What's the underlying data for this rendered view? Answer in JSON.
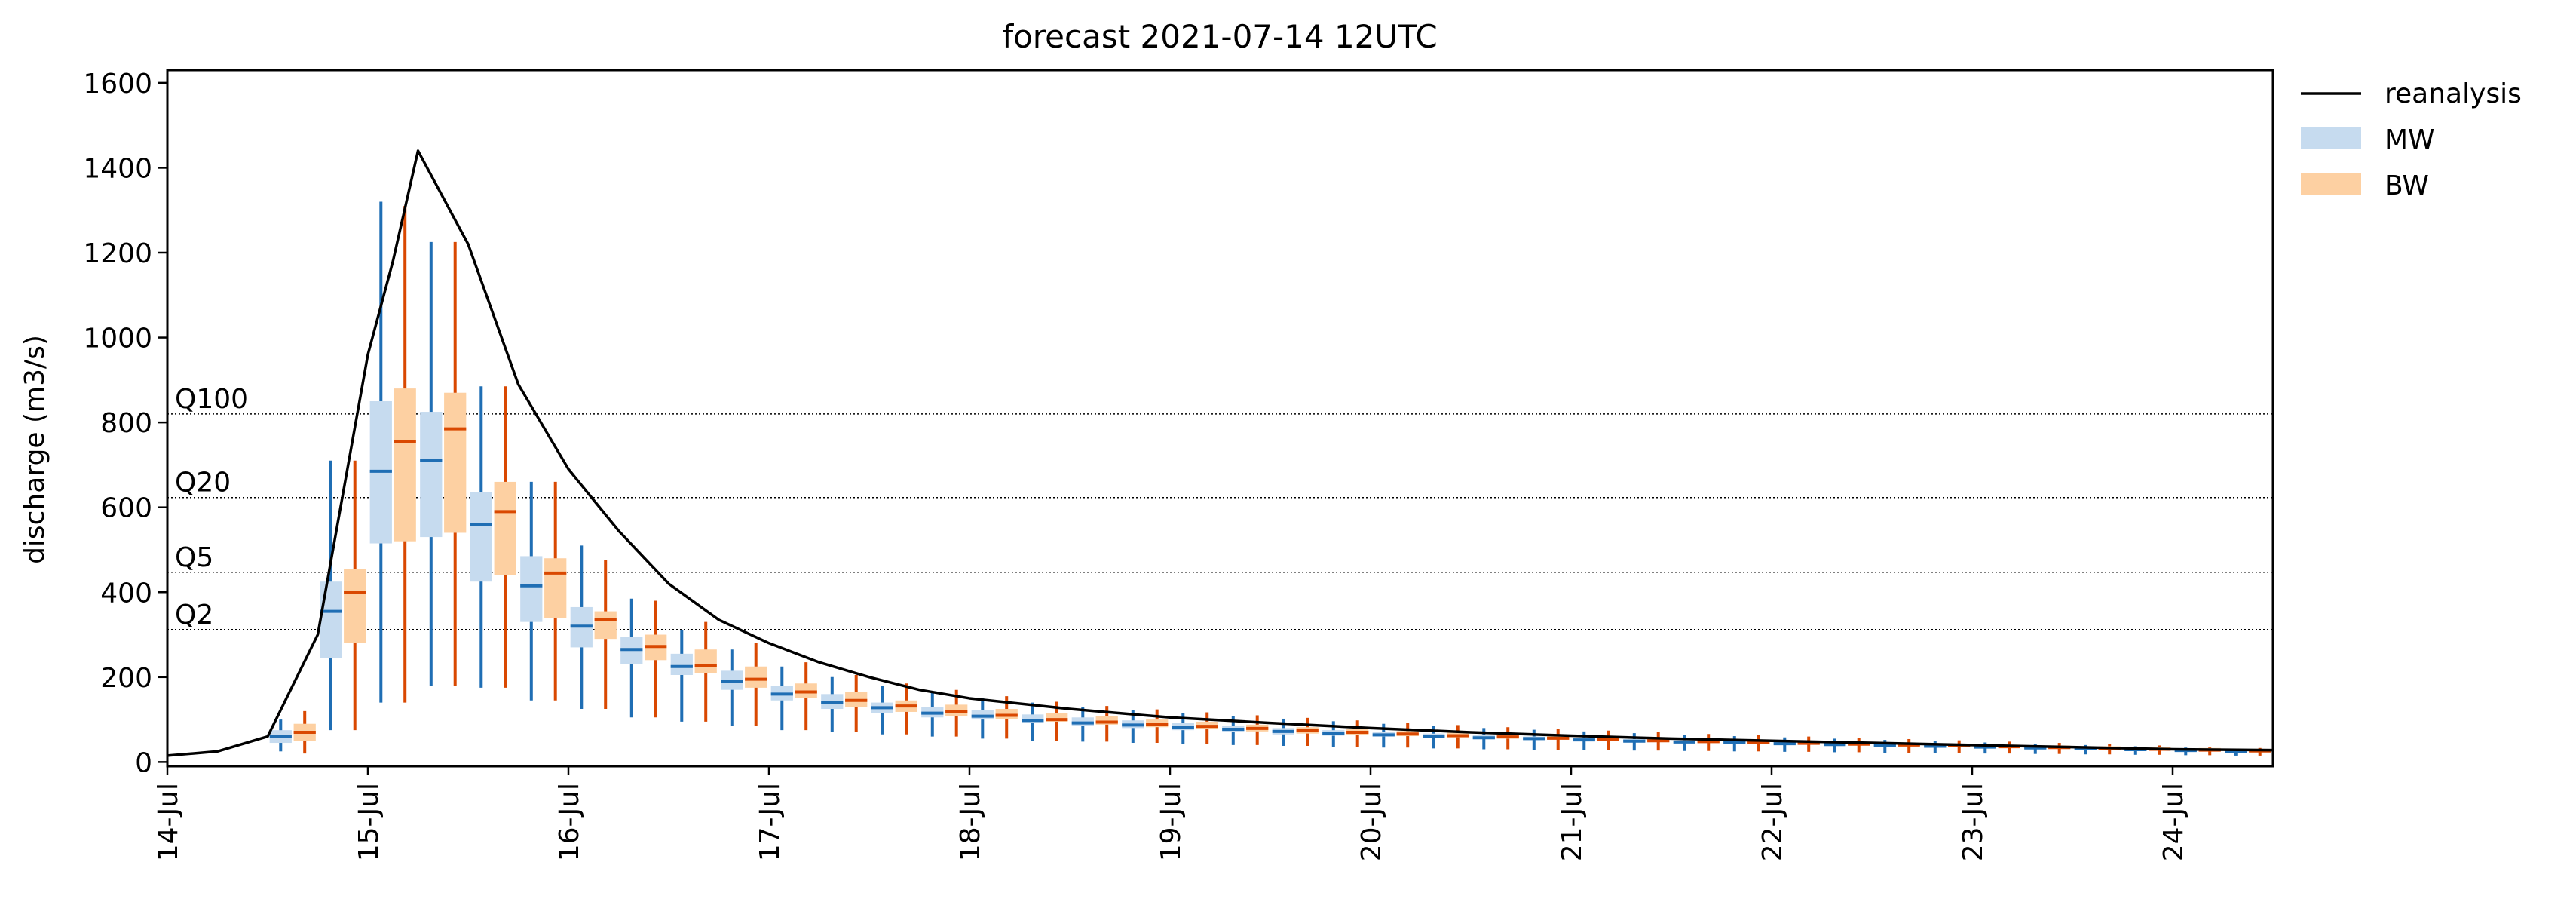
{
  "chart_data": {
    "type": "boxplot-with-line",
    "title": "forecast 2021-07-14 12UTC",
    "xlabel": "",
    "ylabel": "discharge (m3/s)",
    "x_tick_labels": [
      "14-Jul",
      "15-Jul",
      "16-Jul",
      "17-Jul",
      "18-Jul",
      "19-Jul",
      "20-Jul",
      "21-Jul",
      "22-Jul",
      "23-Jul",
      "24-Jul"
    ],
    "xlim_days": [
      0,
      10.5
    ],
    "ylim": [
      -10,
      1630
    ],
    "y_ticks": [
      0,
      200,
      400,
      600,
      800,
      1000,
      1200,
      1400,
      1600
    ],
    "grid": false,
    "legend_position": "outside-right-top",
    "thresholds": [
      {
        "label": "Q100",
        "value": 820
      },
      {
        "label": "Q20",
        "value": 623
      },
      {
        "label": "Q5",
        "value": 447
      },
      {
        "label": "Q2",
        "value": 312
      }
    ],
    "series": [
      {
        "name": "reanalysis",
        "kind": "line",
        "color": "#000000"
      },
      {
        "name": "MW",
        "kind": "box",
        "box_color": "#c6dbef",
        "line_color": "#1f6eb4"
      },
      {
        "name": "BW",
        "kind": "box",
        "box_color": "#fdd0a2",
        "line_color": "#d94801"
      }
    ],
    "reanalysis": {
      "x": [
        0,
        0.25,
        0.5,
        0.75,
        1.0,
        1.125,
        1.25,
        1.5,
        1.75,
        2.0,
        2.25,
        2.5,
        2.75,
        3.0,
        3.25,
        3.5,
        3.75,
        4.0,
        4.5,
        5.0,
        5.5,
        6.0,
        6.5,
        7.0,
        7.5,
        8.0,
        8.5,
        9.0,
        9.5,
        10.0,
        10.5
      ],
      "y": [
        15,
        25,
        60,
        300,
        960,
        1180,
        1440,
        1220,
        890,
        690,
        545,
        420,
        335,
        280,
        235,
        200,
        170,
        150,
        125,
        105,
        92,
        80,
        70,
        62,
        55,
        50,
        45,
        40,
        35,
        30,
        28
      ]
    },
    "forecast": {
      "x": [
        0.625,
        0.875,
        1.125,
        1.375,
        1.625,
        1.875,
        2.125,
        2.375,
        2.625,
        2.875,
        3.125,
        3.375,
        3.625,
        3.875,
        4.125,
        4.375,
        4.625,
        4.875,
        5.125,
        5.375,
        5.625,
        5.875,
        6.125,
        6.375,
        6.625,
        6.875,
        7.125,
        7.375,
        7.625,
        7.875,
        8.125,
        8.375,
        8.625,
        8.875,
        9.125,
        9.375,
        9.625,
        9.875,
        10.125,
        10.375
      ],
      "MW": {
        "whislo": [
          25,
          75,
          140,
          180,
          175,
          145,
          125,
          105,
          95,
          85,
          75,
          70,
          65,
          60,
          55,
          50,
          48,
          45,
          43,
          40,
          38,
          36,
          34,
          32,
          30,
          29,
          28,
          27,
          26,
          25,
          24,
          23,
          22,
          21,
          20,
          19,
          18,
          17,
          16,
          15
        ],
        "q1": [
          45,
          245,
          515,
          530,
          425,
          330,
          270,
          230,
          205,
          170,
          145,
          125,
          115,
          105,
          100,
          92,
          85,
          80,
          75,
          70,
          65,
          62,
          60,
          57,
          54,
          52,
          50,
          47,
          45,
          43,
          41,
          39,
          37,
          35,
          33,
          31,
          29,
          27,
          25,
          23
        ],
        "med": [
          60,
          355,
          685,
          710,
          560,
          415,
          320,
          265,
          225,
          190,
          160,
          140,
          128,
          115,
          108,
          98,
          92,
          87,
          82,
          77,
          72,
          68,
          64,
          60,
          57,
          55,
          52,
          49,
          47,
          45,
          43,
          41,
          39,
          37,
          35,
          33,
          31,
          29,
          27,
          25
        ],
        "q3": [
          75,
          425,
          850,
          825,
          635,
          485,
          365,
          295,
          255,
          215,
          180,
          160,
          140,
          130,
          122,
          112,
          105,
          98,
          92,
          86,
          80,
          75,
          71,
          67,
          63,
          60,
          57,
          54,
          51,
          49,
          47,
          45,
          43,
          41,
          39,
          37,
          35,
          33,
          31,
          29
        ],
        "whishi": [
          100,
          710,
          1320,
          1225,
          885,
          660,
          510,
          385,
          310,
          265,
          225,
          200,
          180,
          165,
          150,
          140,
          130,
          122,
          115,
          108,
          102,
          96,
          90,
          85,
          80,
          76,
          72,
          68,
          64,
          61,
          58,
          55,
          52,
          49,
          46,
          43,
          40,
          37,
          34,
          31
        ]
      },
      "BW": {
        "whislo": [
          20,
          75,
          140,
          180,
          175,
          145,
          125,
          105,
          95,
          85,
          75,
          70,
          65,
          60,
          55,
          50,
          48,
          45,
          43,
          40,
          38,
          36,
          34,
          32,
          30,
          29,
          28,
          27,
          26,
          25,
          24,
          23,
          22,
          21,
          20,
          19,
          18,
          17,
          16,
          15
        ],
        "q1": [
          50,
          280,
          520,
          540,
          440,
          340,
          290,
          240,
          210,
          175,
          150,
          130,
          118,
          108,
          102,
          95,
          88,
          82,
          77,
          72,
          67,
          63,
          61,
          58,
          55,
          53,
          51,
          48,
          46,
          44,
          42,
          40,
          38,
          36,
          34,
          32,
          30,
          28,
          26,
          24
        ],
        "med": [
          70,
          400,
          755,
          785,
          590,
          445,
          335,
          272,
          228,
          195,
          165,
          145,
          132,
          118,
          110,
          100,
          94,
          89,
          84,
          79,
          74,
          70,
          66,
          62,
          59,
          56,
          53,
          50,
          48,
          46,
          44,
          42,
          40,
          38,
          36,
          34,
          32,
          30,
          28,
          26
        ],
        "q3": [
          90,
          455,
          880,
          870,
          660,
          480,
          355,
          300,
          265,
          225,
          185,
          165,
          145,
          135,
          125,
          115,
          108,
          100,
          95,
          88,
          82,
          77,
          73,
          69,
          65,
          62,
          59,
          56,
          53,
          51,
          49,
          47,
          45,
          43,
          41,
          39,
          37,
          35,
          33,
          31
        ],
        "whishi": [
          120,
          710,
          1310,
          1225,
          885,
          660,
          475,
          380,
          330,
          280,
          235,
          205,
          185,
          170,
          155,
          142,
          132,
          124,
          117,
          110,
          104,
          98,
          92,
          87,
          82,
          78,
          74,
          70,
          66,
          63,
          60,
          57,
          54,
          51,
          48,
          45,
          42,
          39,
          36,
          33
        ]
      }
    }
  }
}
